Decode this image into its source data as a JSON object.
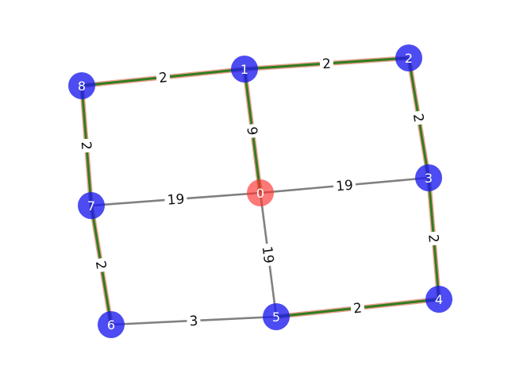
{
  "graph": {
    "nodes": [
      {
        "id": "0",
        "color": "#ff3030",
        "highlight": true
      },
      {
        "id": "1",
        "color": "#1a1aee"
      },
      {
        "id": "2",
        "color": "#1a1aee"
      },
      {
        "id": "3",
        "color": "#1a1aee"
      },
      {
        "id": "4",
        "color": "#1a1aee"
      },
      {
        "id": "5",
        "color": "#1a1aee"
      },
      {
        "id": "6",
        "color": "#1a1aee"
      },
      {
        "id": "7",
        "color": "#1a1aee"
      },
      {
        "id": "8",
        "color": "#1a1aee"
      }
    ],
    "edges": [
      {
        "source": "8",
        "target": "1",
        "weight": "2",
        "highlighted": true
      },
      {
        "source": "1",
        "target": "2",
        "weight": "2",
        "highlighted": true
      },
      {
        "source": "2",
        "target": "3",
        "weight": "2",
        "highlighted": true
      },
      {
        "source": "3",
        "target": "4",
        "weight": "2",
        "highlighted": true
      },
      {
        "source": "4",
        "target": "5",
        "weight": "2",
        "highlighted": true
      },
      {
        "source": "1",
        "target": "0",
        "weight": "9",
        "highlighted": true
      },
      {
        "source": "8",
        "target": "7",
        "weight": "2",
        "highlighted": true
      },
      {
        "source": "7",
        "target": "6",
        "weight": "2",
        "highlighted": true
      },
      {
        "source": "7",
        "target": "0",
        "weight": "19",
        "highlighted": false
      },
      {
        "source": "0",
        "target": "3",
        "weight": "19",
        "highlighted": false
      },
      {
        "source": "0",
        "target": "5",
        "weight": "19",
        "highlighted": false
      },
      {
        "source": "6",
        "target": "5",
        "weight": "3",
        "highlighted": false
      }
    ],
    "colors": {
      "node_default": "#1a1aee",
      "node_source": "#ff3030",
      "edge_default": "#808080",
      "edge_path": "#2f7d1e",
      "edge_path_glow": "#e8a090"
    }
  }
}
